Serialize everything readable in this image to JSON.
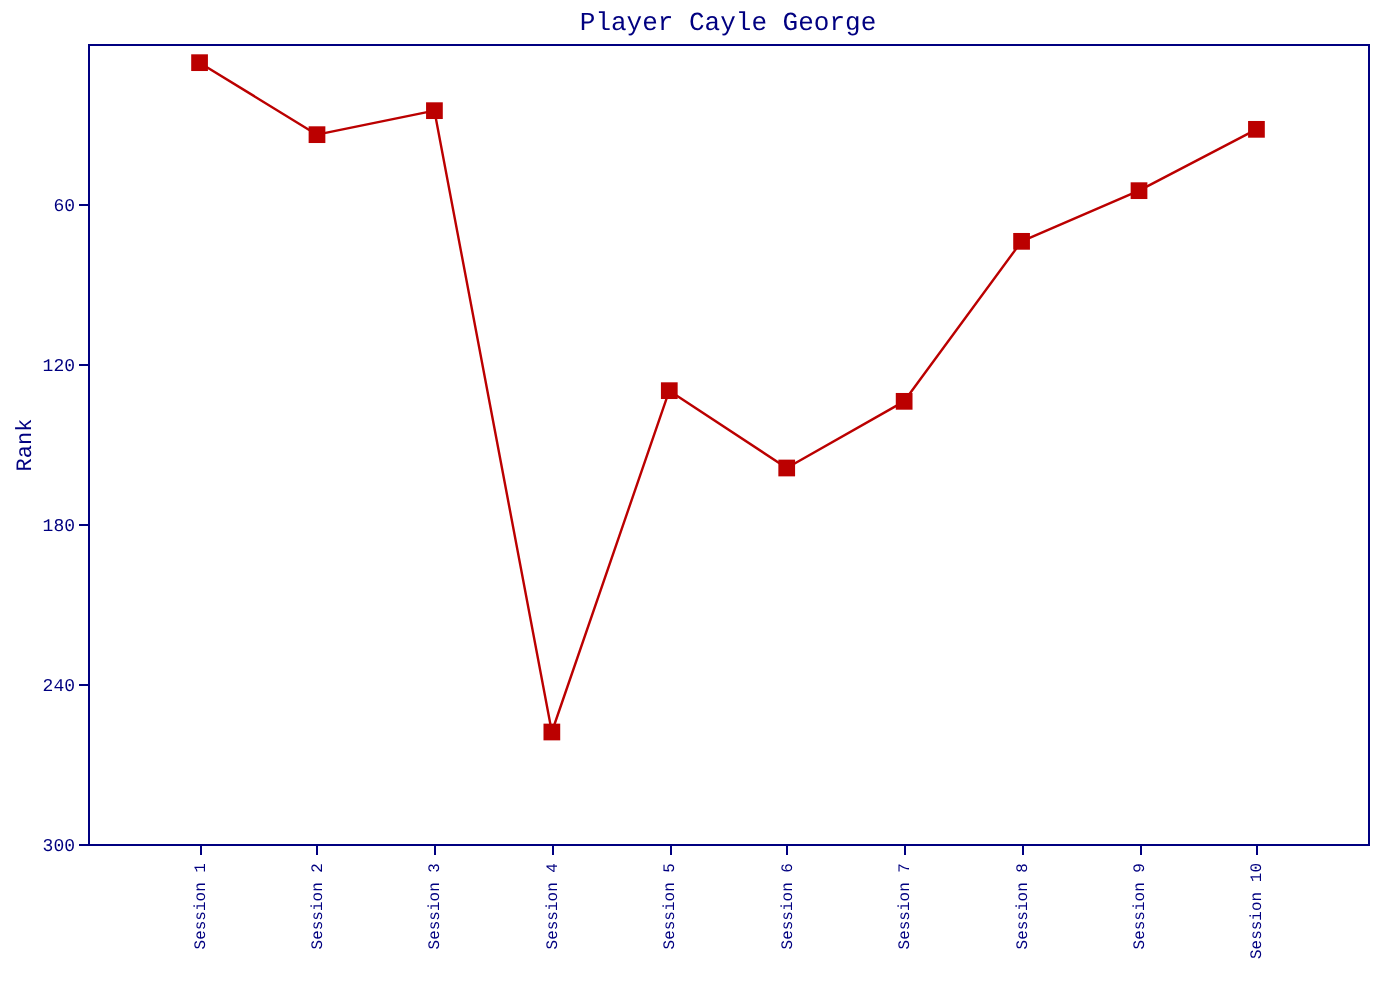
{
  "chart_data": {
    "type": "line",
    "title": "Player Cayle George",
    "ylabel": "Rank",
    "categories": [
      "Session 1",
      "Session 2",
      "Session 3",
      "Session 4",
      "Session 5",
      "Session 6",
      "Session 7",
      "Session 8",
      "Session 9",
      "Session 10"
    ],
    "series": [
      {
        "color": "#bb0000",
        "values": [
          7,
          34,
          25,
          258,
          130,
          159,
          134,
          74,
          55,
          32
        ]
      }
    ],
    "ylim": [
      300,
      0
    ],
    "yticks": [
      60,
      120,
      180,
      240,
      300
    ],
    "grid": false,
    "marker": "square",
    "line_style": "solid"
  }
}
